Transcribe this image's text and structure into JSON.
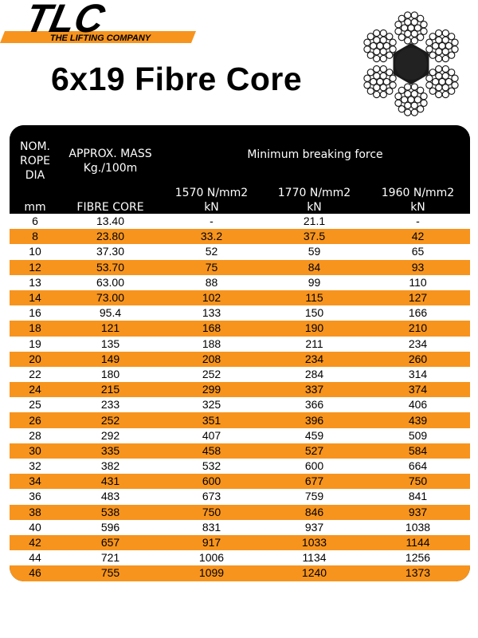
{
  "logo": {
    "mark": "TLC",
    "tagline": "THE LIFTING COMPANY"
  },
  "title": "6x19 Fibre Core",
  "colors": {
    "accent": "#f7941d",
    "header_bg": "#000000"
  },
  "table": {
    "header": {
      "nom_line1": "NOM.",
      "nom_line2": "ROPE",
      "nom_line3": "DIA",
      "nom_unit": "mm",
      "mass_line1": "APPROX. MASS",
      "mass_line2": "Kg./100m",
      "mass_sub": "FIBRE CORE",
      "mbf": "Minimum breaking force",
      "grades": [
        "1570 N/mm2",
        "1770 N/mm2",
        "1960 N/mm2"
      ],
      "unit": "kN"
    },
    "rows": [
      [
        "6",
        "13.40",
        "-",
        "21.1",
        "-"
      ],
      [
        "8",
        "23.80",
        "33.2",
        "37.5",
        "42"
      ],
      [
        "10",
        "37.30",
        "52",
        "59",
        "65"
      ],
      [
        "12",
        "53.70",
        "75",
        "84",
        "93"
      ],
      [
        "13",
        "63.00",
        "88",
        "99",
        "110"
      ],
      [
        "14",
        "73.00",
        "102",
        "115",
        "127"
      ],
      [
        "16",
        "95.4",
        "133",
        "150",
        "166"
      ],
      [
        "18",
        "121",
        "168",
        "190",
        "210"
      ],
      [
        "19",
        "135",
        "188",
        "211",
        "234"
      ],
      [
        "20",
        "149",
        "208",
        "234",
        "260"
      ],
      [
        "22",
        "180",
        "252",
        "284",
        "314"
      ],
      [
        "24",
        "215",
        "299",
        "337",
        "374"
      ],
      [
        "25",
        "233",
        "325",
        "366",
        "406"
      ],
      [
        "26",
        "252",
        "351",
        "396",
        "439"
      ],
      [
        "28",
        "292",
        "407",
        "459",
        "509"
      ],
      [
        "30",
        "335",
        "458",
        "527",
        "584"
      ],
      [
        "32",
        "382",
        "532",
        "600",
        "664"
      ],
      [
        "34",
        "431",
        "600",
        "677",
        "750"
      ],
      [
        "36",
        "483",
        "673",
        "759",
        "841"
      ],
      [
        "38",
        "538",
        "750",
        "846",
        "937"
      ],
      [
        "40",
        "596",
        "831",
        "937",
        "1038"
      ],
      [
        "42",
        "657",
        "917",
        "1033",
        "1144"
      ],
      [
        "44",
        "721",
        "1006",
        "1134",
        "1256"
      ],
      [
        "46",
        "755",
        "1099",
        "1240",
        "1373"
      ]
    ]
  }
}
